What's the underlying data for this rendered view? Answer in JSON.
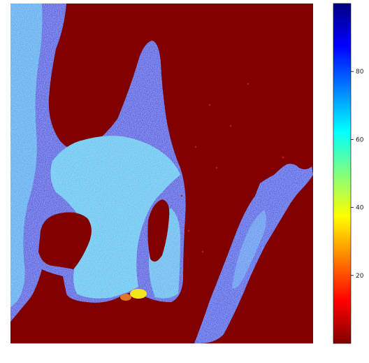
{
  "chart_data": {
    "type": "heatmap",
    "title": "",
    "xlabel": "",
    "ylabel": "",
    "axes_visible": false,
    "colormap": "jet",
    "colorbar": {
      "placement": "right",
      "range": [
        0,
        100
      ],
      "ticks": [
        20,
        40,
        60,
        80
      ],
      "tick_labels": [
        "20",
        "40",
        "60",
        "80"
      ]
    },
    "grid": false,
    "image": {
      "description_values": {
        "background_value": 0,
        "land_mass_value_range": [
          70,
          95
        ],
        "inner_lobe_value_range": [
          55,
          70
        ],
        "hotspot_value": 45
      }
    }
  }
}
